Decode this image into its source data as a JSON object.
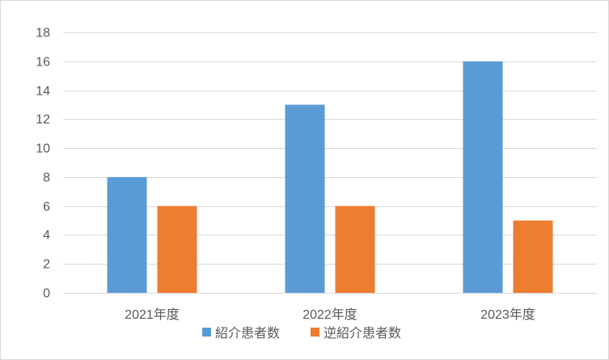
{
  "chart_data": {
    "type": "bar",
    "categories": [
      "2021年度",
      "2022年度",
      "2023年度"
    ],
    "series": [
      {
        "name": "紹介患者数",
        "values": [
          8,
          13,
          16
        ],
        "color": "#5b9bd5"
      },
      {
        "name": "逆紹介患者数",
        "values": [
          6,
          6,
          5
        ],
        "color": "#ed7d31"
      }
    ],
    "ylim": [
      0,
      18
    ],
    "yticks": [
      0,
      2,
      4,
      6,
      8,
      10,
      12,
      14,
      16,
      18
    ],
    "grid": true,
    "legend": "bottom",
    "grid_color": "#d9d9d9",
    "text_color": "#595959"
  }
}
